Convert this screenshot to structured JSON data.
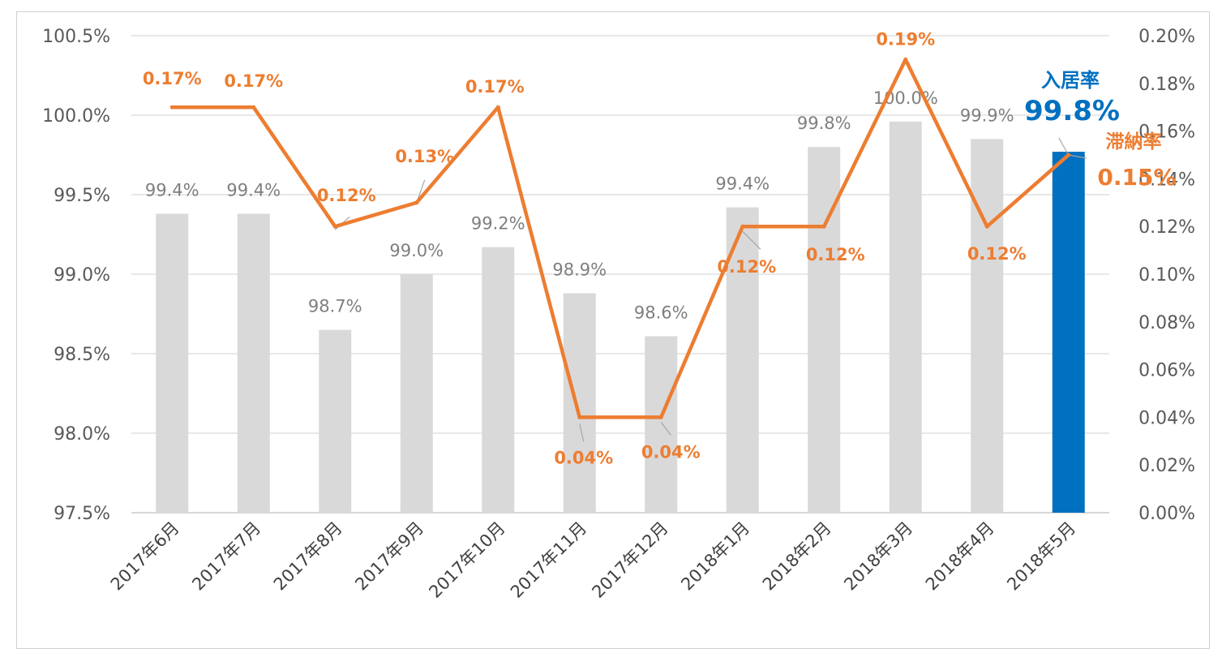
{
  "chart_data": {
    "type": "bar",
    "categories": [
      "2017年6月",
      "2017年7月",
      "2017年8月",
      "2017年9月",
      "2017年10月",
      "2017年11月",
      "2017年12月",
      "2018年1月",
      "2018年2月",
      "2018年3月",
      "2018年4月",
      "2018年5月"
    ],
    "series": [
      {
        "type": "bar",
        "axis": "left",
        "values": [
          99.38,
          99.38,
          98.65,
          99.0,
          99.17,
          98.88,
          98.61,
          99.42,
          99.8,
          99.96,
          99.85,
          99.77
        ],
        "labels": [
          "99.4%",
          "99.4%",
          "98.7%",
          "99.0%",
          "99.2%",
          "98.9%",
          "98.6%",
          "99.4%",
          "99.8%",
          "100.0%",
          "99.9%",
          ""
        ],
        "color": "#d9d9d9",
        "highlight_color": "#0070c0",
        "highlight_index": 11
      },
      {
        "type": "line",
        "axis": "right",
        "values": [
          0.17,
          0.17,
          0.12,
          0.13,
          0.17,
          0.04,
          0.04,
          0.12,
          0.12,
          0.19,
          0.12,
          0.15
        ],
        "labels": [
          "0.17%",
          "0.17%",
          "0.12%",
          "0.13%",
          "0.17%",
          "0.04%",
          "0.04%",
          "0.12%",
          "0.12%",
          "0.19%",
          "0.12%",
          ""
        ],
        "color": "#ed7d31"
      }
    ],
    "y_left": {
      "lim": [
        97.5,
        100.5
      ],
      "ticks": [
        "100.5%",
        "100.0%",
        "99.5%",
        "99.0%",
        "98.5%",
        "98.0%",
        "97.5%"
      ]
    },
    "y_right": {
      "lim": [
        0,
        0.2
      ],
      "ticks": [
        "0.20%",
        "0.18%",
        "0.16%",
        "0.14%",
        "0.12%",
        "0.10%",
        "0.08%",
        "0.06%",
        "0.04%",
        "0.02%",
        "0.00%"
      ]
    },
    "grid": true,
    "callouts": {
      "occupancy_title": "入居率",
      "occupancy_value": "99.8%",
      "delinquency_title": "滞納率",
      "delinquency_value": "0.15%"
    }
  }
}
